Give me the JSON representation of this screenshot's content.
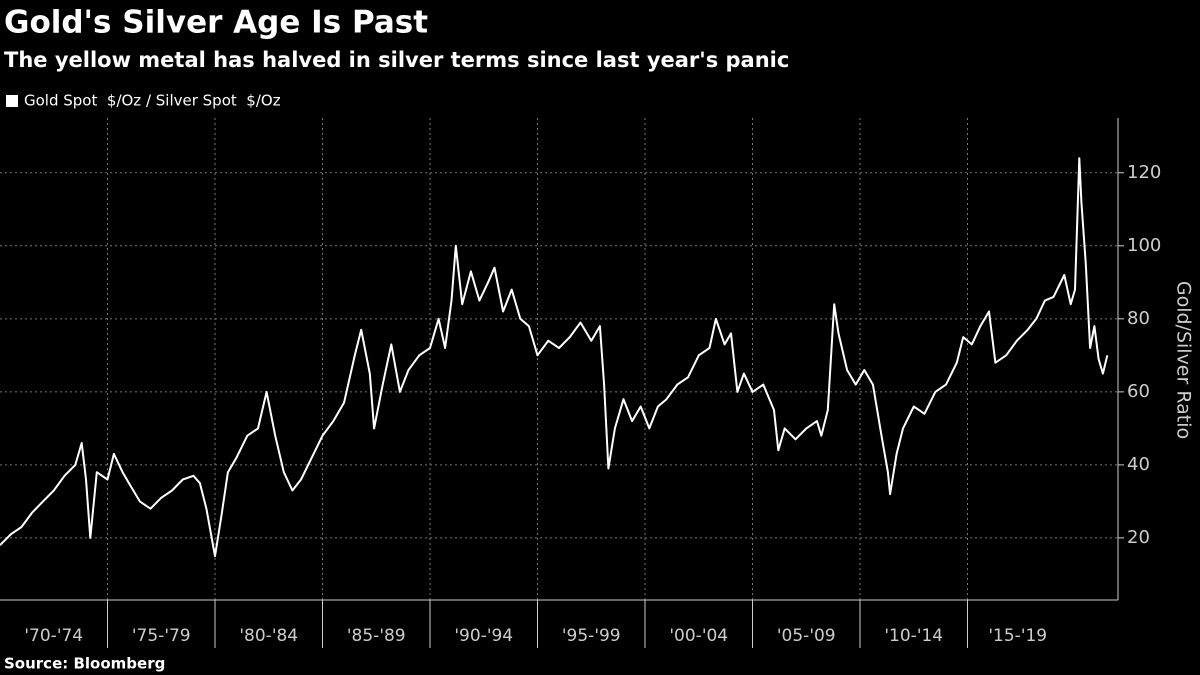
{
  "chart_data": {
    "type": "line",
    "title": "Gold's Silver Age Is Past",
    "subtitle": "The yellow metal has halved in silver terms since last year's panic",
    "y_label": "Gold/Silver Ratio",
    "source": "Source: Bloomberg",
    "x": [
      1970.0,
      1970.5,
      1971.0,
      1971.5,
      1972.0,
      1972.5,
      1973.0,
      1973.5,
      1973.8,
      1974.0,
      1974.2,
      1974.5,
      1975.0,
      1975.3,
      1975.7,
      1976.0,
      1976.5,
      1977.0,
      1977.5,
      1978.0,
      1978.5,
      1979.0,
      1979.3,
      1979.6,
      1980.0,
      1980.3,
      1980.6,
      1981.0,
      1981.5,
      1982.0,
      1982.4,
      1982.8,
      1983.2,
      1983.6,
      1984.0,
      1984.5,
      1985.0,
      1985.5,
      1986.0,
      1986.5,
      1986.8,
      1987.2,
      1987.4,
      1987.8,
      1988.2,
      1988.6,
      1989.0,
      1989.5,
      1990.0,
      1990.4,
      1990.7,
      1991.0,
      1991.2,
      1991.5,
      1991.9,
      1992.3,
      1992.7,
      1993.0,
      1993.4,
      1993.8,
      1994.2,
      1994.6,
      1995.0,
      1995.5,
      1996.0,
      1996.5,
      1997.0,
      1997.5,
      1997.9,
      1998.1,
      1998.3,
      1998.6,
      1999.0,
      1999.4,
      1999.8,
      2000.2,
      2000.6,
      2001.0,
      2001.5,
      2002.0,
      2002.5,
      2003.0,
      2003.3,
      2003.7,
      2004.0,
      2004.3,
      2004.6,
      2005.0,
      2005.5,
      2006.0,
      2006.2,
      2006.5,
      2007.0,
      2007.5,
      2008.0,
      2008.2,
      2008.5,
      2008.8,
      2009.0,
      2009.4,
      2009.8,
      2010.2,
      2010.6,
      2011.0,
      2011.3,
      2011.4,
      2011.7,
      2012.0,
      2012.5,
      2013.0,
      2013.5,
      2014.0,
      2014.5,
      2014.8,
      2015.2,
      2015.6,
      2016.0,
      2016.3,
      2016.8,
      2017.3,
      2017.8,
      2018.2,
      2018.6,
      2019.0,
      2019.5,
      2019.8,
      2020.0,
      2020.2,
      2020.3,
      2020.5,
      2020.7,
      2020.9,
      2021.1,
      2021.3,
      2021.5
    ],
    "series": [
      {
        "name": "Gold Spot  $/Oz / Silver Spot  $/Oz",
        "color": "#ffffff",
        "values": [
          18,
          21,
          23,
          27,
          30,
          33,
          37,
          40,
          46,
          36,
          20,
          38,
          36,
          43,
          38,
          35,
          30,
          28,
          31,
          33,
          36,
          37,
          35,
          28,
          15,
          26,
          38,
          42,
          48,
          50,
          60,
          48,
          38,
          33,
          36,
          42,
          48,
          52,
          57,
          70,
          77,
          65,
          50,
          62,
          73,
          60,
          66,
          70,
          72,
          80,
          72,
          85,
          100,
          84,
          93,
          85,
          90,
          94,
          82,
          88,
          80,
          78,
          70,
          74,
          72,
          75,
          79,
          74,
          78,
          62,
          39,
          50,
          58,
          52,
          56,
          50,
          56,
          58,
          62,
          64,
          70,
          72,
          80,
          73,
          76,
          60,
          65,
          60,
          62,
          55,
          44,
          50,
          47,
          50,
          52,
          48,
          55,
          84,
          76,
          66,
          62,
          66,
          62,
          48,
          38,
          32,
          43,
          50,
          56,
          54,
          60,
          62,
          68,
          75,
          73,
          78,
          82,
          68,
          70,
          74,
          77,
          80,
          85,
          86,
          92,
          84,
          88,
          124,
          112,
          95,
          72,
          78,
          69,
          65,
          70
        ]
      }
    ],
    "xlim": [
      1970,
      2022
    ],
    "xticks": [
      {
        "value": 1970,
        "label": "'70-'74"
      },
      {
        "value": 1975,
        "label": "'75-'79"
      },
      {
        "value": 1980,
        "label": "'80-'84"
      },
      {
        "value": 1985,
        "label": "'85-'89"
      },
      {
        "value": 1990,
        "label": "'90-'94"
      },
      {
        "value": 1995,
        "label": "'95-'99"
      },
      {
        "value": 2000,
        "label": "'00-'04"
      },
      {
        "value": 2005,
        "label": "'05-'09"
      },
      {
        "value": 2010,
        "label": "'10-'14"
      },
      {
        "value": 2015,
        "label": "'15-'19"
      }
    ],
    "ylim": [
      3,
      135
    ],
    "yticks": [
      20,
      40,
      60,
      80,
      100,
      120
    ],
    "grid": true
  }
}
